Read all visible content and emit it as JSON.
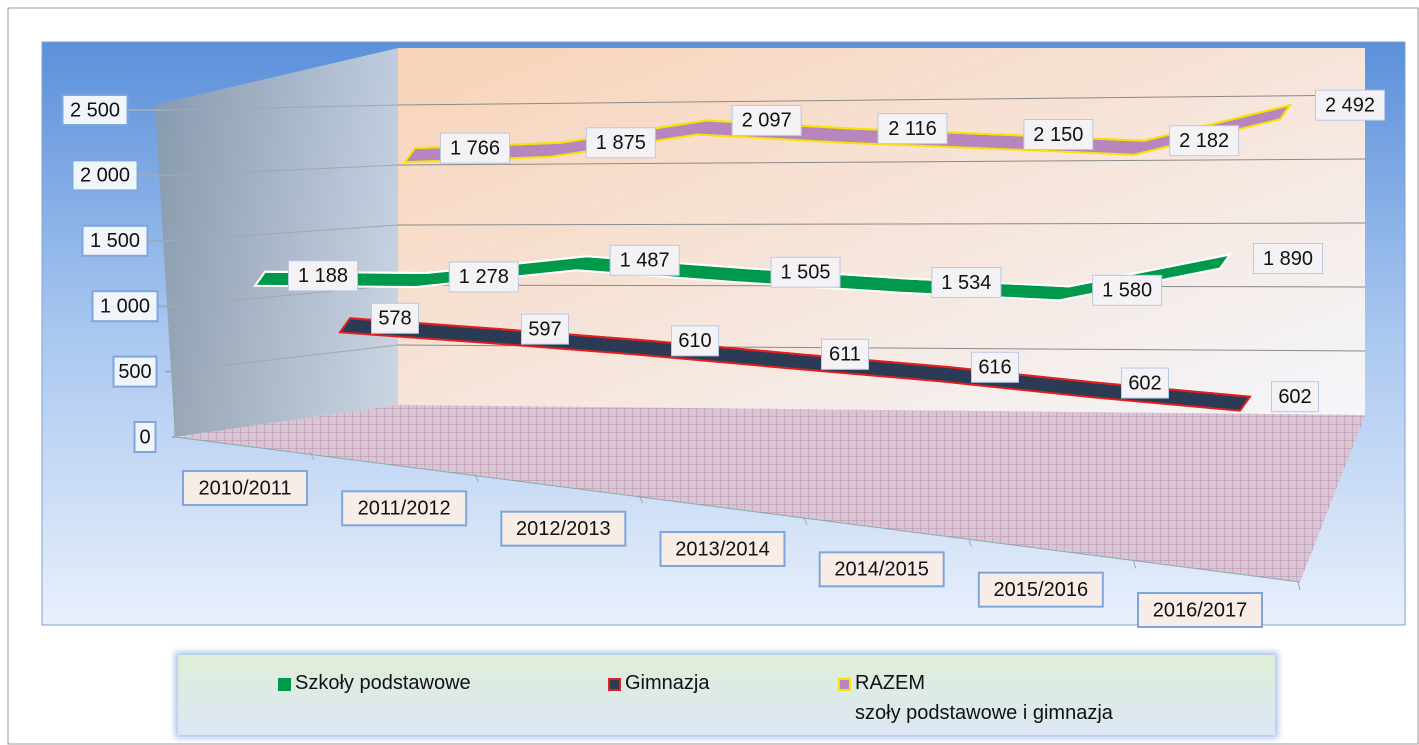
{
  "chart_data": {
    "type": "line3d",
    "categories": [
      "2010/2011",
      "2011/2012",
      "2012/2013",
      "2013/2014",
      "2014/2015",
      "2015/2016",
      "2016/2017"
    ],
    "series": [
      {
        "name": "Szkoły podstawowe",
        "color": "#00994c",
        "edge": "#ffffff",
        "values": [
          1188,
          1278,
          1487,
          1505,
          1534,
          1580,
          1890
        ],
        "value_labels": [
          "1 188",
          "1 278",
          "1 487",
          "1 505",
          "1 534",
          "1 580",
          "1 890"
        ]
      },
      {
        "name": "Gimnazja",
        "color": "#2b3a55",
        "edge": "#e0201c",
        "values": [
          578,
          597,
          610,
          611,
          616,
          602,
          602
        ],
        "value_labels": [
          "578",
          "597",
          "610",
          "611",
          "616",
          "602",
          "602"
        ]
      },
      {
        "name": "RAZEM\nszoły podstawowe i gimnazja",
        "color": "#b886bf",
        "edge": "#f5e400",
        "values": [
          1766,
          1875,
          2097,
          2116,
          2150,
          2182,
          2492
        ],
        "value_labels": [
          "1 766",
          "1 875",
          "2 097",
          "2 116",
          "2 150",
          "2 182",
          "2 492"
        ]
      }
    ],
    "ylim": [
      0,
      2500
    ],
    "yticks": [
      0,
      500,
      {
        "value": 1000,
        "label": "1 000"
      },
      {
        "value": 1500,
        "label": "1 500"
      },
      {
        "value": 2000,
        "label": "2 000"
      },
      {
        "value": 2500,
        "label": "2 500"
      }
    ],
    "grid": true,
    "legend": "bottom"
  }
}
